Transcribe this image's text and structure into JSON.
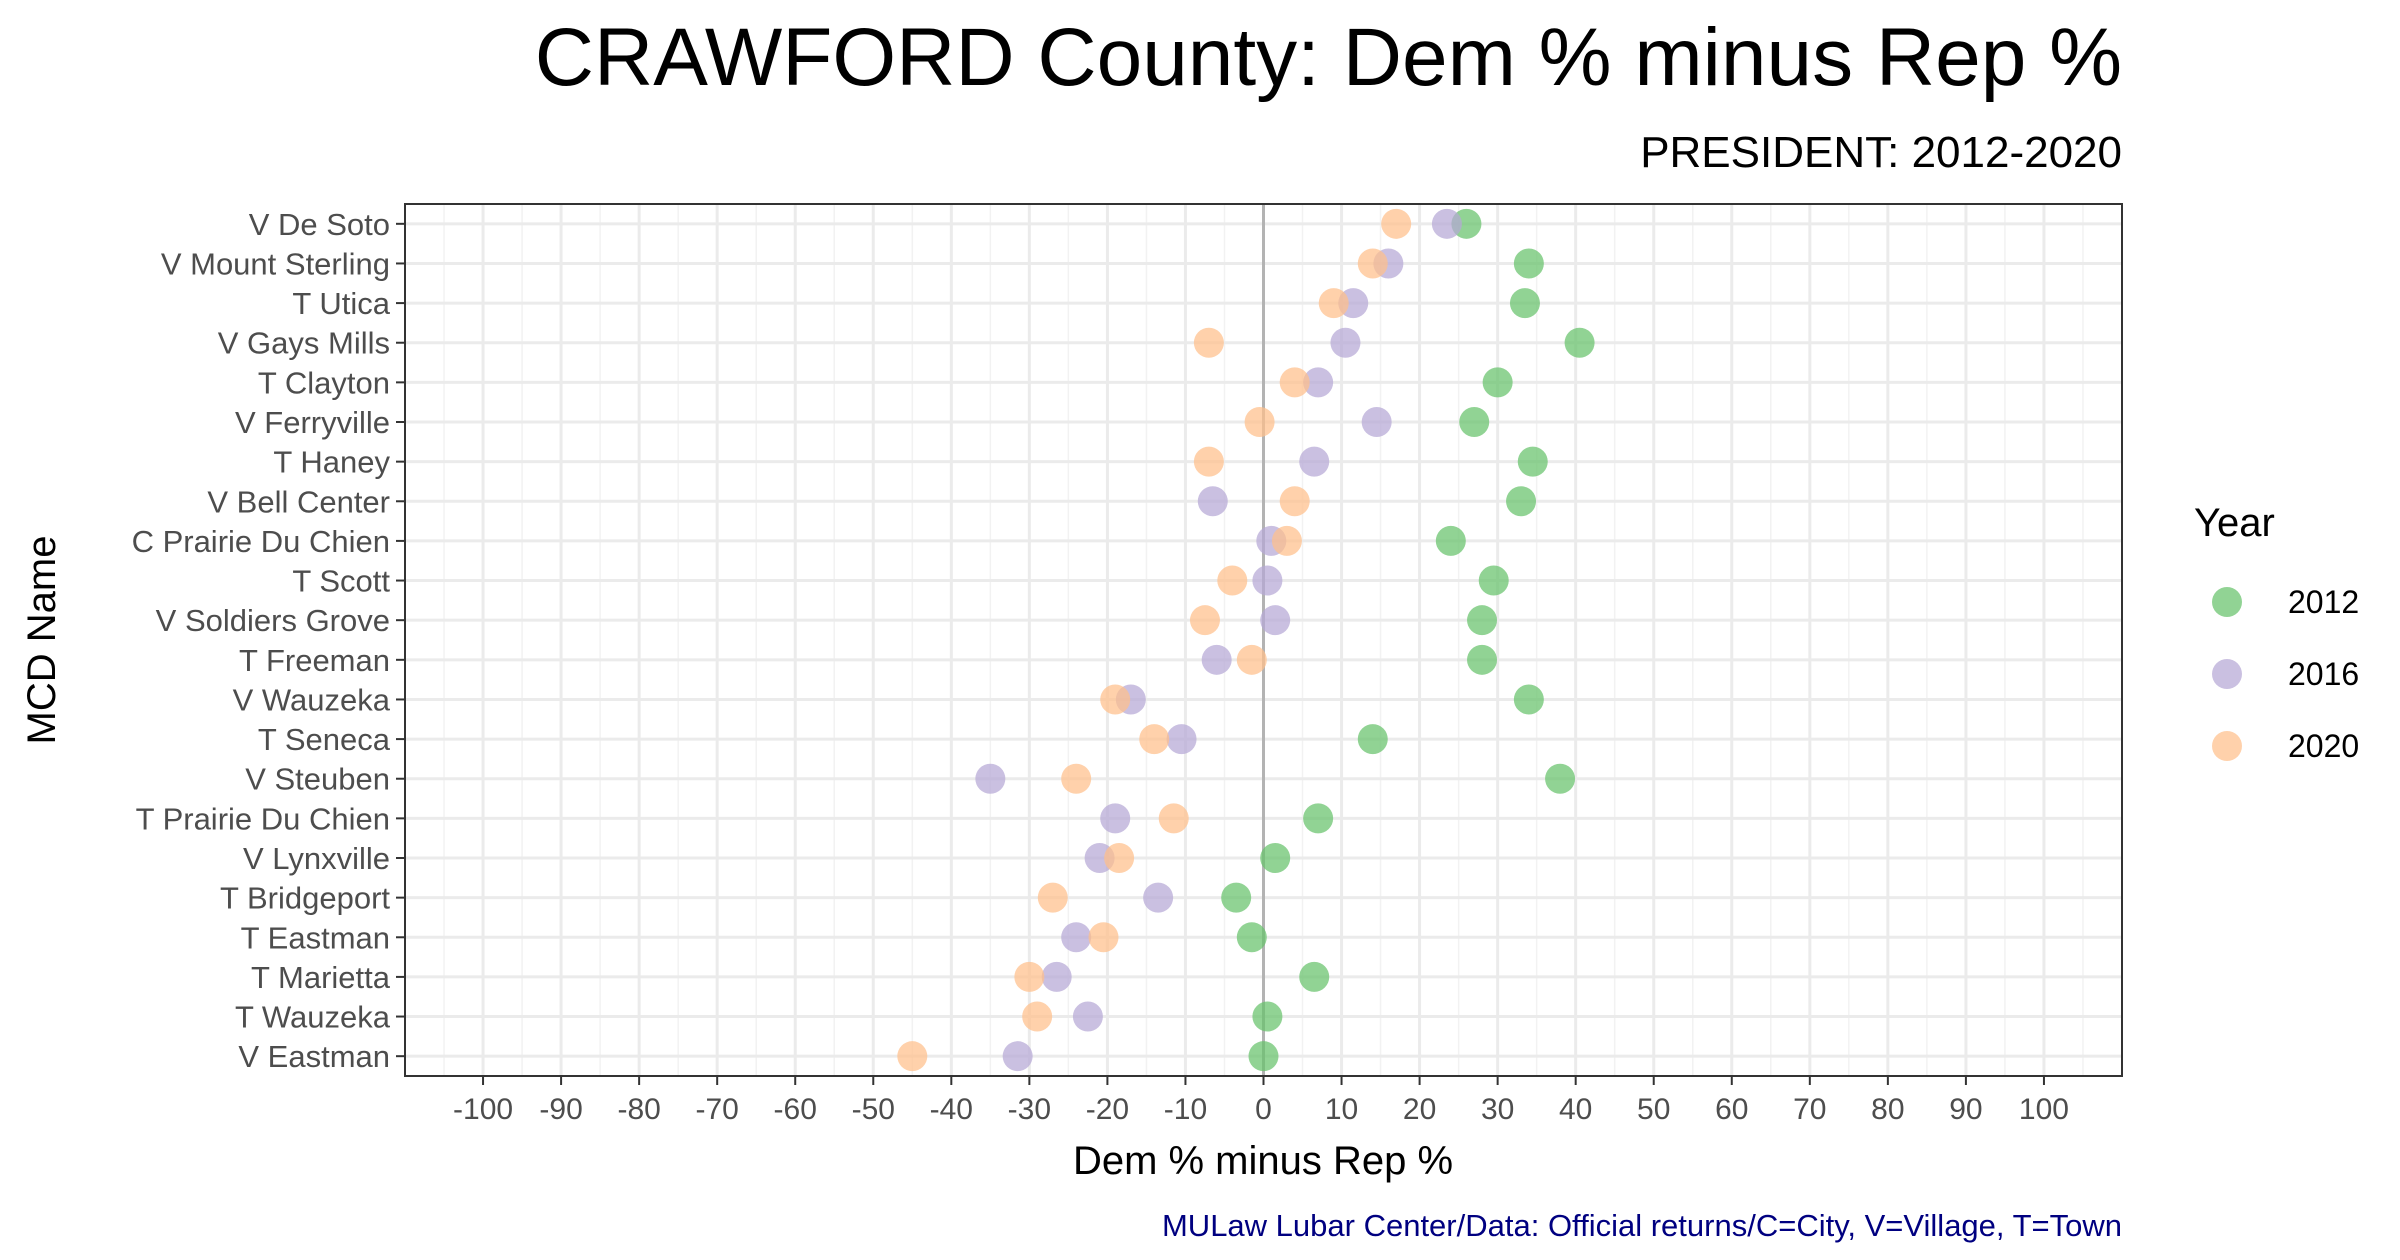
{
  "chart_data": {
    "type": "scatter",
    "title": "CRAWFORD County: Dem % minus Rep %",
    "subtitle": "PRESIDENT: 2012-2020",
    "xlabel": "Dem % minus Rep %",
    "ylabel": "MCD Name",
    "xlim": [
      -110,
      110
    ],
    "xticks": [
      -100,
      -90,
      -80,
      -70,
      -60,
      -50,
      -40,
      -30,
      -20,
      -10,
      0,
      10,
      20,
      30,
      40,
      50,
      60,
      70,
      80,
      90,
      100
    ],
    "grid": true,
    "legend_title": "Year",
    "legend_position": "right",
    "caption": "MULaw Lubar Center/Data: Official returns/C=City, V=Village, T=Town",
    "categories": [
      "V De Soto",
      "V Mount Sterling",
      "T Utica",
      "V Gays Mills",
      "T Clayton",
      "V Ferryville",
      "T Haney",
      "V Bell Center",
      "C Prairie Du Chien",
      "T Scott",
      "V Soldiers Grove",
      "T Freeman",
      "V Wauzeka",
      "T Seneca",
      "V Steuben",
      "T Prairie Du Chien",
      "V Lynxville",
      "T Bridgeport",
      "T Eastman",
      "T Marietta",
      "T Wauzeka",
      "V Eastman"
    ],
    "series": [
      {
        "name": "2012",
        "color": "#66c26b",
        "values": [
          26,
          34,
          33.5,
          40.5,
          30,
          27,
          34.5,
          33,
          24,
          29.5,
          28,
          28,
          34,
          14,
          38,
          7,
          1.5,
          -3.5,
          -1.5,
          6.5,
          0.5,
          0
        ]
      },
      {
        "name": "2016",
        "color": "#b5a7d6",
        "values": [
          23.5,
          16,
          11.5,
          10.5,
          7,
          14.5,
          6.5,
          -6.5,
          1,
          0.5,
          1.5,
          -6,
          -17,
          -10.5,
          -35,
          -19,
          -21,
          -13.5,
          -24,
          -26.5,
          -22.5,
          -31.5
        ]
      },
      {
        "name": "2020",
        "color": "#ffbf8a",
        "values": [
          17,
          14,
          9,
          -7,
          4,
          -0.5,
          -7,
          4,
          3,
          -4,
          -7.5,
          -1.5,
          -19,
          -14,
          -24,
          -11.5,
          -18.5,
          -27,
          -20.5,
          -30,
          -29,
          -45
        ]
      }
    ]
  }
}
